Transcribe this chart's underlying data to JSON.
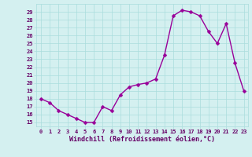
{
  "x": [
    0,
    1,
    2,
    3,
    4,
    5,
    6,
    7,
    8,
    9,
    10,
    11,
    12,
    13,
    14,
    15,
    16,
    17,
    18,
    19,
    20,
    21,
    22,
    23
  ],
  "y": [
    18.0,
    17.5,
    16.5,
    16.0,
    15.5,
    15.0,
    15.0,
    17.0,
    16.5,
    18.5,
    19.5,
    19.8,
    20.0,
    20.5,
    23.5,
    28.5,
    29.2,
    29.0,
    28.5,
    26.5,
    25.0,
    27.5,
    22.5,
    19.0
  ],
  "line_color": "#990099",
  "marker_color": "#990099",
  "bg_color": "#d4f0f0",
  "grid_color": "#aadddd",
  "axis_color": "#660066",
  "xlabel": "Windchill (Refroidissement éolien,°C)",
  "ylabel_ticks": [
    15,
    16,
    17,
    18,
    19,
    20,
    21,
    22,
    23,
    24,
    25,
    26,
    27,
    28,
    29
  ],
  "ylim": [
    14.5,
    30.0
  ],
  "xlim": [
    -0.5,
    23.5
  ]
}
